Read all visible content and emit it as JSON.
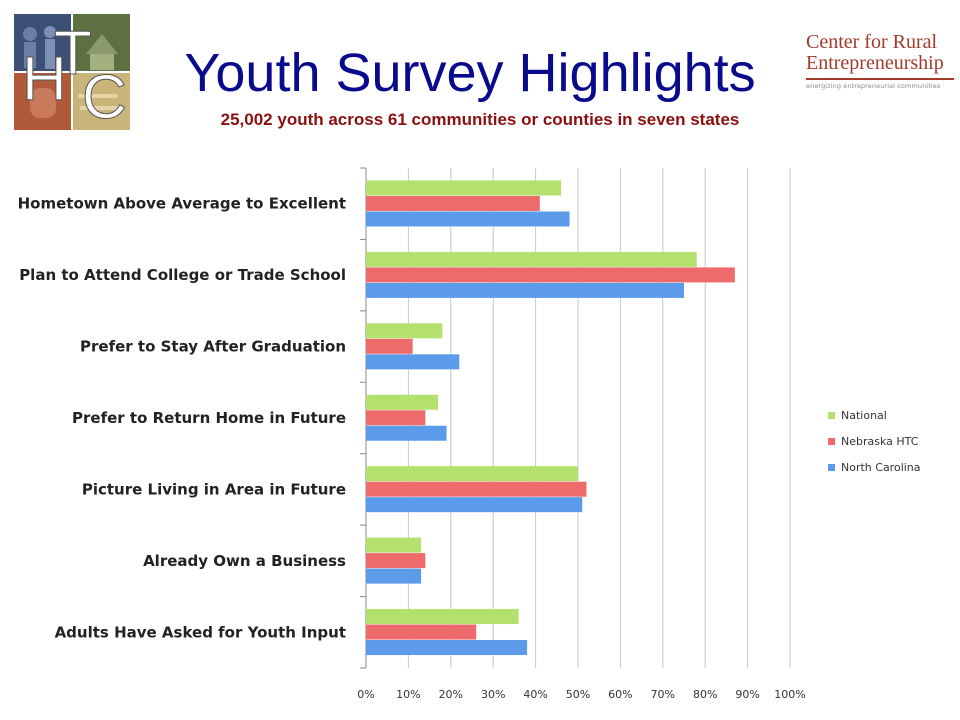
{
  "title": "Youth Survey Highlights",
  "subtitle": "25,002 youth across 61 communities or counties in seven states",
  "htc_logo": {
    "letters": [
      "H",
      "T",
      "C"
    ]
  },
  "cre_logo": {
    "line1": "Center for Rural",
    "line2": "Entrepreneurship",
    "tagline": "energizing entrepreneurial communities"
  },
  "colors": {
    "National": "#b4e06e",
    "Nebraska HTC": "#ee6b6b",
    "North Carolina": "#5b9bea"
  },
  "chart_data": {
    "type": "bar",
    "orientation": "horizontal",
    "categories": [
      "Hometown Above Average to Excellent",
      "Plan to Attend College or Trade School",
      "Prefer to Stay After Graduation",
      "Prefer to Return Home in Future",
      "Picture Living in Area in Future",
      "Already Own a Business",
      "Adults Have Asked for Youth Input"
    ],
    "series": [
      {
        "name": "National",
        "values": [
          46,
          78,
          18,
          17,
          50,
          13,
          36
        ]
      },
      {
        "name": "Nebraska HTC",
        "values": [
          41,
          87,
          11,
          14,
          52,
          14,
          26
        ]
      },
      {
        "name": "North Carolina",
        "values": [
          48,
          75,
          22,
          19,
          51,
          13,
          38
        ]
      }
    ],
    "xlim": [
      0,
      100
    ],
    "xticks": [
      "0%",
      "10%",
      "20%",
      "30%",
      "40%",
      "50%",
      "60%",
      "70%",
      "80%",
      "90%",
      "100%"
    ],
    "grid": true,
    "legend": "right"
  }
}
